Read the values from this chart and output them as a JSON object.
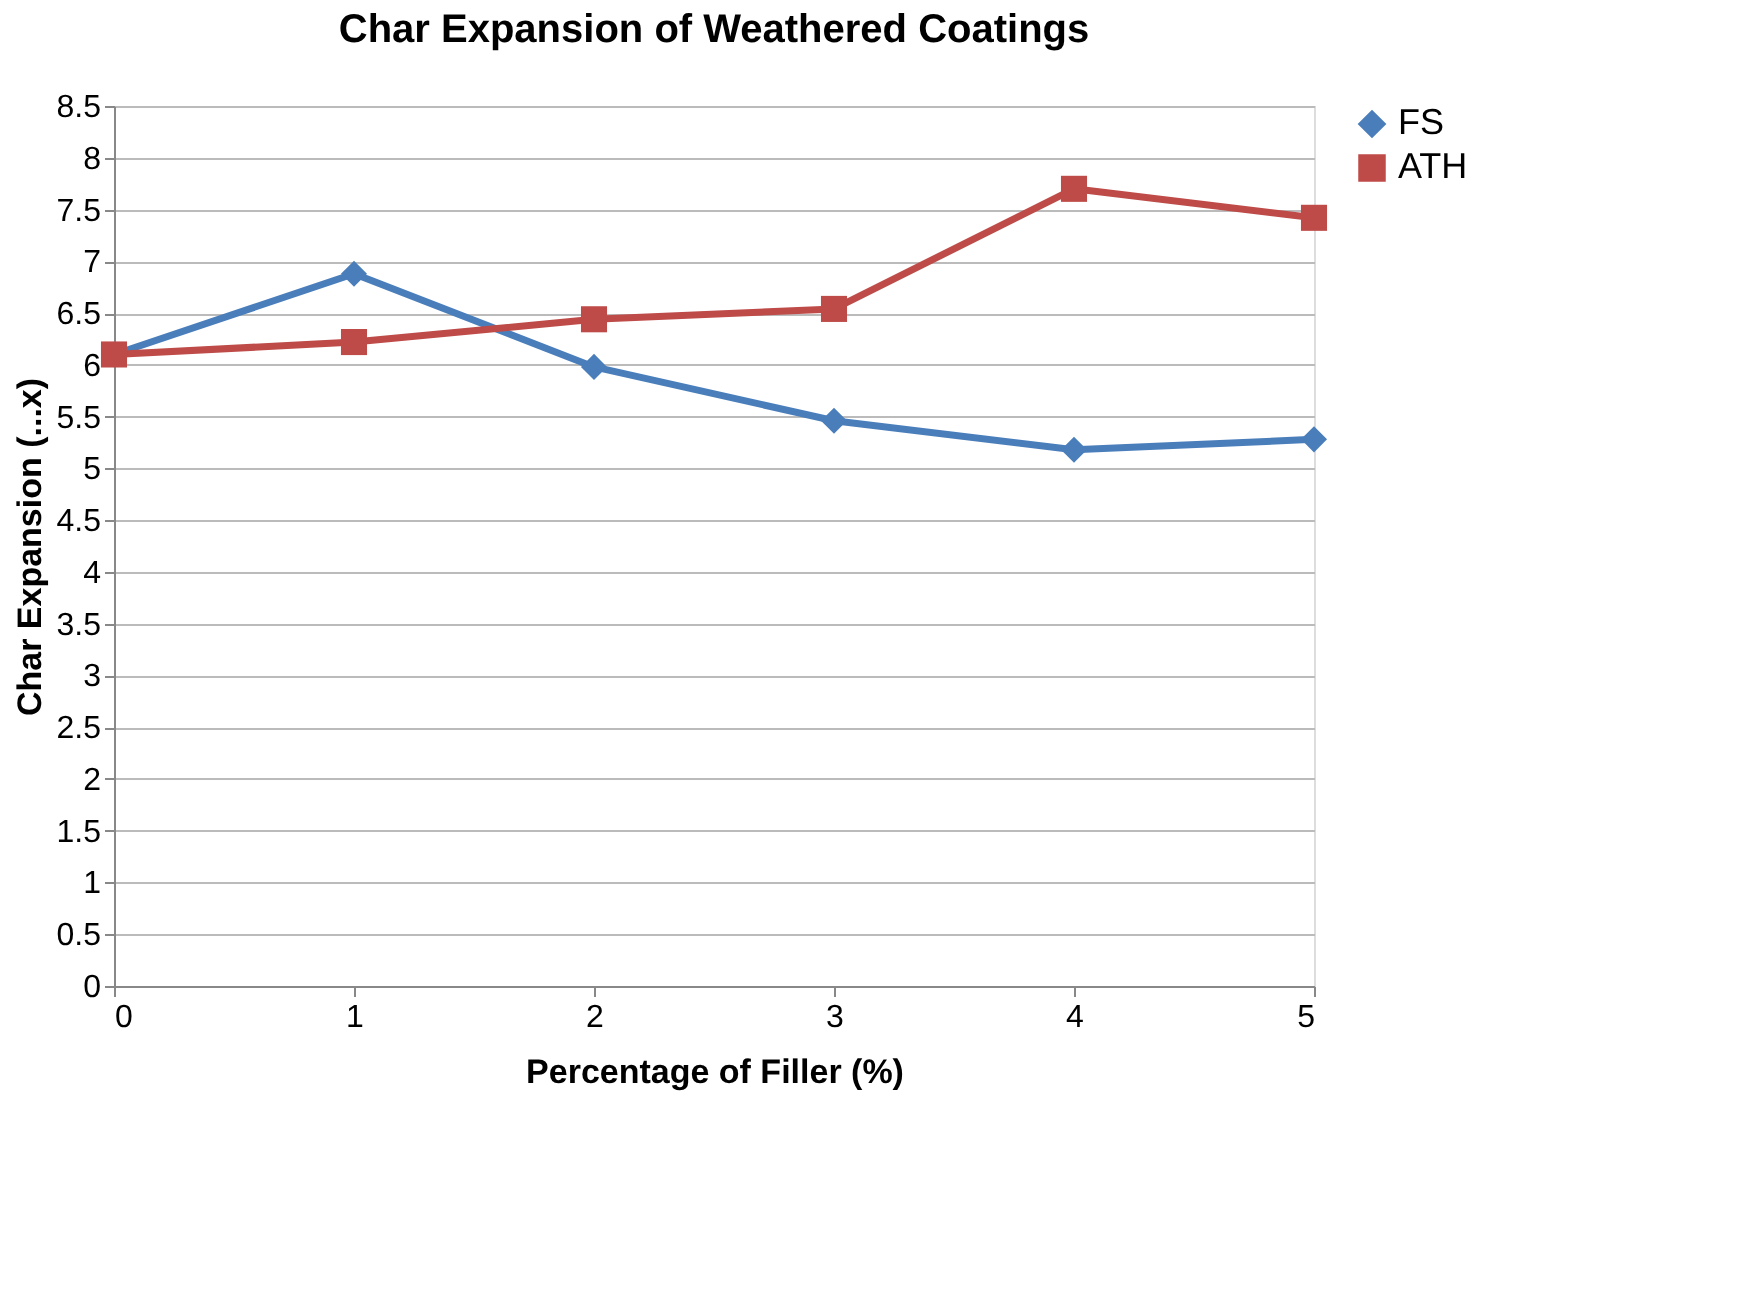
{
  "chart_data": {
    "type": "line",
    "title": "Char Expansion of Weathered Coatings",
    "xlabel": "Percentage of Filler (%)",
    "ylabel": "Char Expansion (...x)",
    "x": [
      0,
      1,
      2,
      3,
      4,
      5
    ],
    "xlim": [
      0,
      5
    ],
    "xticks": [
      0,
      1,
      2,
      3,
      4,
      5
    ],
    "ylim": [
      0,
      8.5
    ],
    "yticks": [
      0,
      0.5,
      1,
      1.5,
      2,
      2.5,
      3,
      3.5,
      4,
      4.5,
      5,
      5.5,
      6,
      6.5,
      7,
      7.5,
      8,
      8.5
    ],
    "grid": "y",
    "legend": "right",
    "line_style": "solid",
    "series": [
      {
        "name": "FS",
        "color": "#4a7ebb",
        "marker": "diamond",
        "values": [
          6.1,
          6.88,
          5.98,
          5.46,
          5.18,
          5.28
        ]
      },
      {
        "name": "ATH",
        "color": "#be4b48",
        "marker": "square",
        "values": [
          6.1,
          6.22,
          6.44,
          6.54,
          7.7,
          7.42
        ]
      }
    ]
  }
}
